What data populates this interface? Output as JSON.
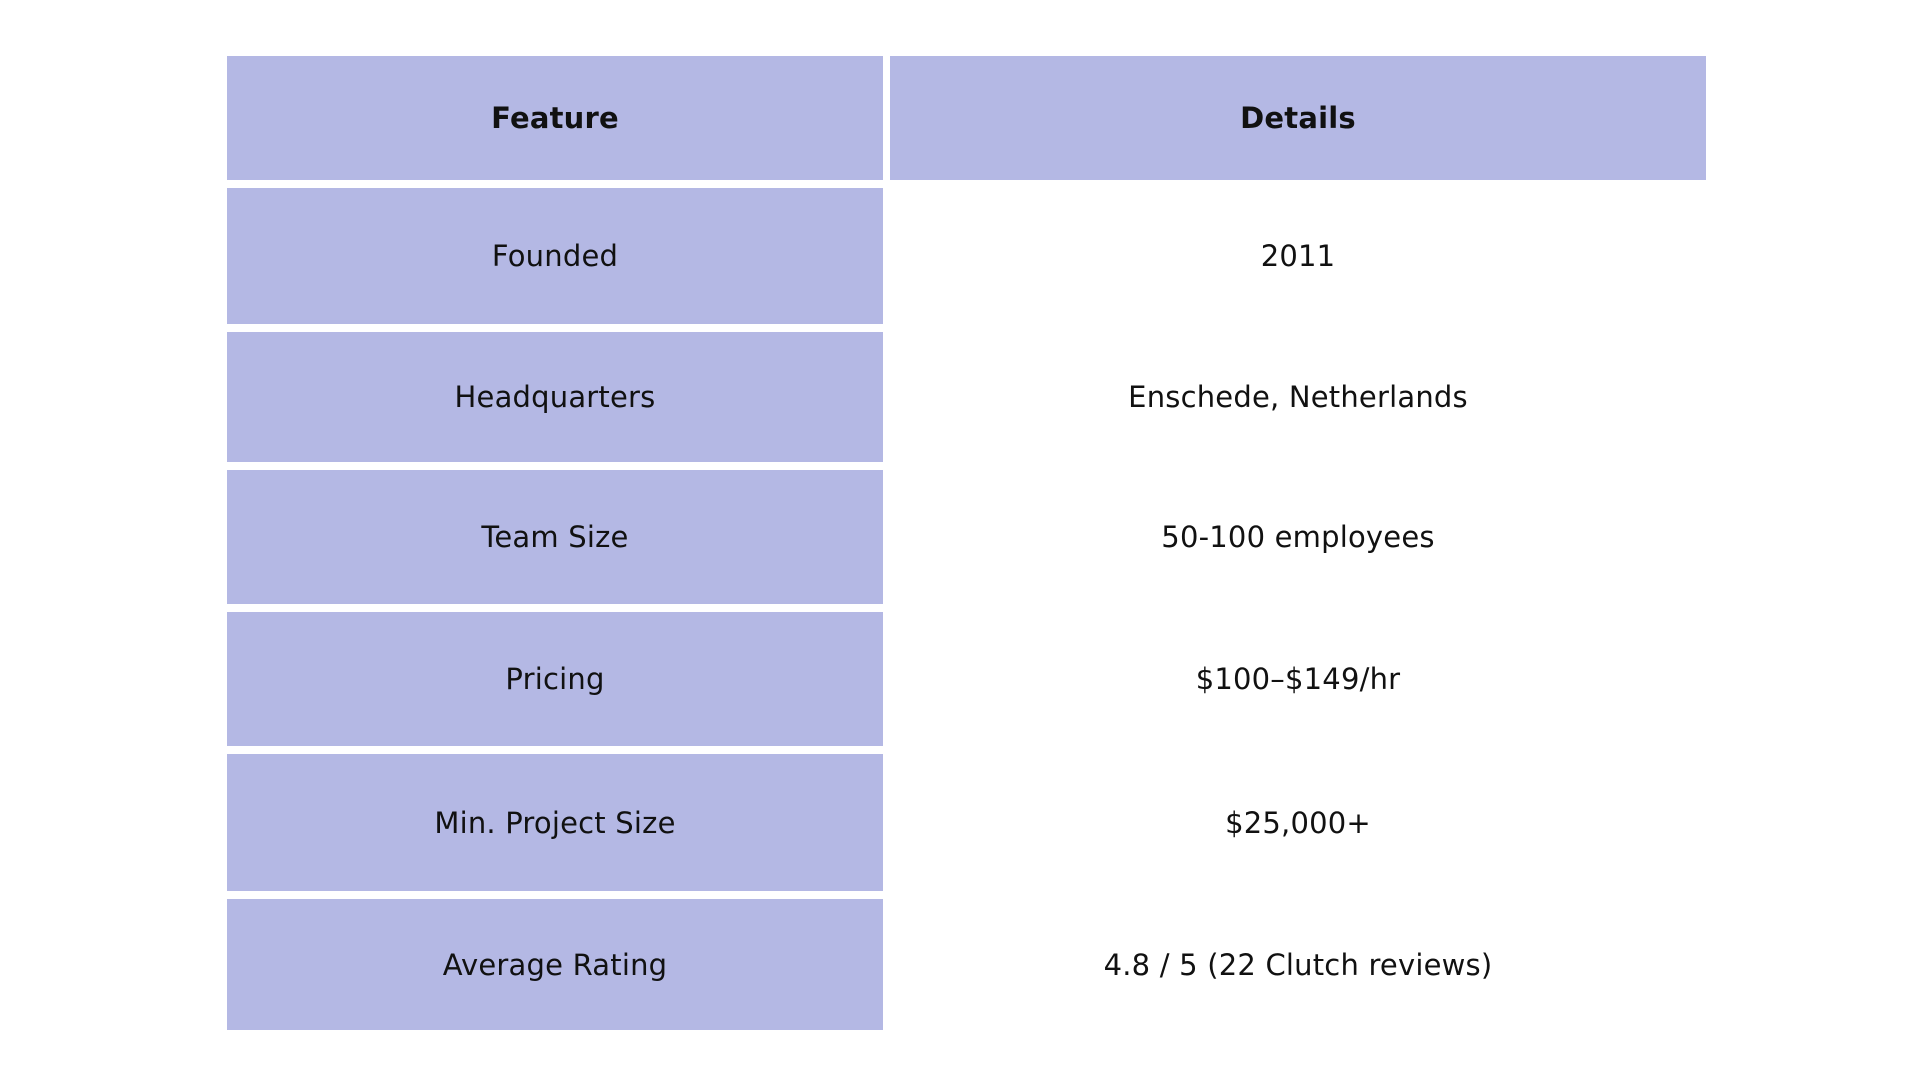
{
  "table": {
    "headers": {
      "feature": "Feature",
      "details": "Details"
    },
    "rows": [
      {
        "feature": "Founded",
        "details": "2011"
      },
      {
        "feature": "Headquarters",
        "details": "Enschede, Netherlands"
      },
      {
        "feature": "Team Size",
        "details": "50-100 employees"
      },
      {
        "feature": "Pricing",
        "details": "$100–$149/hr"
      },
      {
        "feature": "Min. Project Size",
        "details": "$25,000+"
      },
      {
        "feature": "Average Rating",
        "details": "4.8 / 5 (22 Clutch reviews)"
      }
    ]
  },
  "colors": {
    "header_fill": "#b4b8e4",
    "feature_fill": "#b4b8e4",
    "background": "#ffffff",
    "text": "#111111"
  }
}
